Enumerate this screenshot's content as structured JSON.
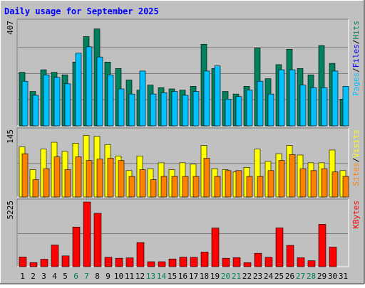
{
  "title": "Daily usage for September 2025",
  "colors": {
    "background": "#c0c0c0",
    "title": "#0000ff",
    "hits": "#00805c",
    "files": "#0000ff",
    "pages": "#00c0ff",
    "visits": "#ffff00",
    "sites": "#ff8000",
    "kbytes": "#ff0000",
    "weekend_label": "#00805c",
    "weekday_label": "#000000"
  },
  "chart_data": [
    {
      "type": "bar",
      "name": "hits-files-pages",
      "y_max_label": "407",
      "ylim": [
        0,
        407
      ],
      "right_label": [
        {
          "text": "Pages",
          "color_key": "pages"
        },
        {
          "text": "/",
          "color_key": "weekday_label"
        },
        {
          "text": "Files",
          "color_key": "files"
        },
        {
          "text": "/",
          "color_key": "weekday_label"
        },
        {
          "text": "Hits",
          "color_key": "hits"
        }
      ],
      "series": [
        {
          "name": "Hits",
          "values": [
            210,
            135,
            220,
            210,
            200,
            250,
            350,
            380,
            250,
            225,
            180,
            140,
            160,
            150,
            145,
            140,
            155,
            320,
            225,
            135,
            125,
            155,
            305,
            185,
            240,
            300,
            225,
            200,
            315,
            245,
            105
          ]
        },
        {
          "name": "Files",
          "values": [
            0,
            0,
            0,
            0,
            0,
            0,
            0,
            0,
            0,
            0,
            0,
            0,
            0,
            0,
            0,
            0,
            0,
            0,
            0,
            0,
            0,
            0,
            0,
            0,
            0,
            0,
            0,
            0,
            0,
            0,
            0
          ]
        },
        {
          "name": "Pages",
          "values": [
            175,
            120,
            200,
            190,
            165,
            285,
            310,
            270,
            200,
            145,
            125,
            215,
            125,
            130,
            135,
            120,
            135,
            215,
            235,
            105,
            115,
            140,
            175,
            125,
            220,
            220,
            160,
            150,
            150,
            215,
            155
          ]
        }
      ]
    },
    {
      "type": "bar",
      "name": "visits-sites",
      "y_max_label": "145",
      "ylim": [
        0,
        145
      ],
      "right_label": [
        {
          "text": "Sites",
          "color_key": "sites"
        },
        {
          "text": "/",
          "color_key": "weekday_label"
        },
        {
          "text": "Visits",
          "color_key": "visits"
        }
      ],
      "series": [
        {
          "name": "Visits",
          "values": [
            110,
            60,
            105,
            120,
            100,
            118,
            135,
            133,
            115,
            90,
            58,
            90,
            62,
            75,
            60,
            75,
            72,
            113,
            62,
            60,
            55,
            65,
            105,
            78,
            95,
            113,
            92,
            75,
            75,
            103,
            58
          ]
        },
        {
          "name": "Sites",
          "values": [
            95,
            38,
            62,
            88,
            60,
            88,
            80,
            83,
            85,
            80,
            45,
            60,
            38,
            45,
            45,
            45,
            45,
            85,
            45,
            58,
            58,
            45,
            45,
            58,
            80,
            93,
            62,
            58,
            62,
            55,
            45
          ]
        }
      ]
    },
    {
      "type": "bar",
      "name": "kbytes",
      "y_max_label": "5225",
      "ylim": [
        0,
        5225
      ],
      "right_label": [
        {
          "text": "KBytes",
          "color_key": "kbytes"
        }
      ],
      "series": [
        {
          "name": "KBytes",
          "values": [
            780,
            330,
            600,
            1750,
            870,
            3200,
            5225,
            4310,
            760,
            680,
            710,
            1950,
            400,
            400,
            620,
            770,
            760,
            1180,
            3120,
            680,
            730,
            320,
            1080,
            760,
            3130,
            1720,
            720,
            480,
            3420,
            1580,
            0
          ]
        }
      ]
    }
  ],
  "days": [
    "1",
    "2",
    "3",
    "4",
    "5",
    "6",
    "7",
    "8",
    "9",
    "10",
    "11",
    "12",
    "13",
    "14",
    "15",
    "16",
    "17",
    "18",
    "19",
    "20",
    "21",
    "22",
    "23",
    "24",
    "25",
    "26",
    "27",
    "28",
    "29",
    "30",
    "31"
  ],
  "weekend_days": [
    "6",
    "7",
    "13",
    "14",
    "20",
    "21",
    "27",
    "28"
  ]
}
